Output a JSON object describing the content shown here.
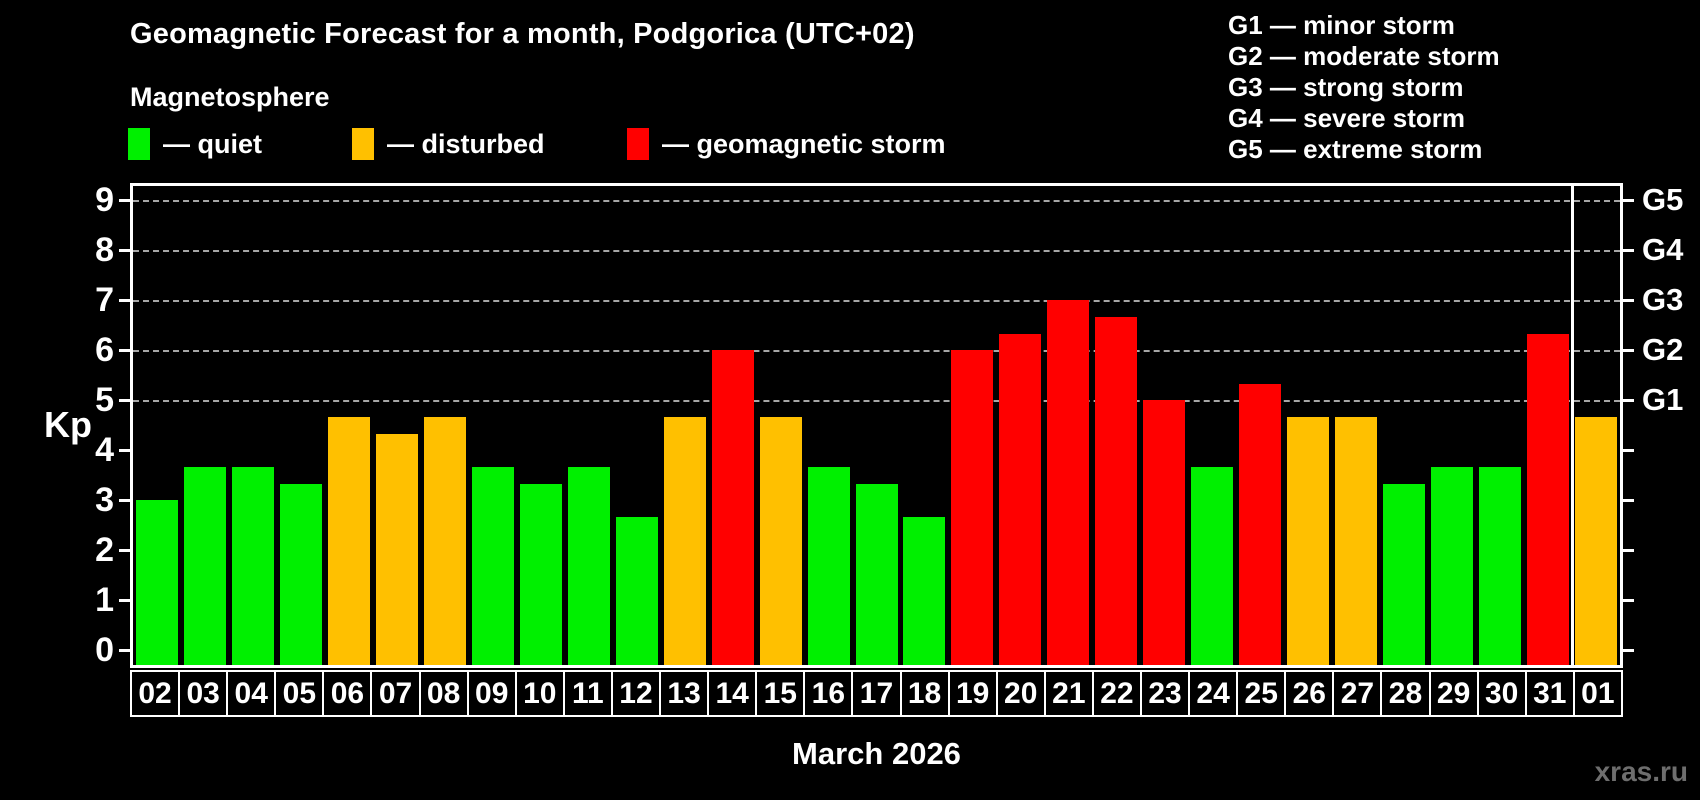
{
  "title": "Geomagnetic Forecast for a month, Podgorica (UTC+02)",
  "subtitle": "Magnetosphere",
  "xlabel": "March 2026",
  "watermark": "xras.ru",
  "colors": {
    "quiet": "#00f000",
    "disturbed": "#ffc000",
    "storm": "#ff0000",
    "grid": "#a6a6a6",
    "axis": "#ffffff",
    "background": "#000000",
    "watermark_text": "#6e6e6e"
  },
  "legend": {
    "items": [
      {
        "status": "quiet",
        "label": "— quiet",
        "x": 128
      },
      {
        "status": "disturbed",
        "label": "— disturbed",
        "x": 352
      },
      {
        "status": "storm",
        "label": "— geomagnetic storm",
        "x": 627
      }
    ]
  },
  "storm_scale": {
    "lines": [
      "G1 — minor storm",
      "G2 — moderate storm",
      "G3 — strong storm",
      "G4 — severe storm",
      "G5 — extreme storm"
    ]
  },
  "axis": {
    "kp_label": "Kp",
    "left_ticks": [
      0,
      1,
      2,
      3,
      4,
      5,
      6,
      7,
      8,
      9
    ],
    "right_labels": [
      {
        "kp": 5,
        "label": "G1"
      },
      {
        "kp": 6,
        "label": "G2"
      },
      {
        "kp": 7,
        "label": "G3"
      },
      {
        "kp": 8,
        "label": "G4"
      },
      {
        "kp": 9,
        "label": "G5"
      }
    ]
  },
  "chart_data": {
    "type": "bar",
    "title": "Geomagnetic Forecast for a month, Podgorica (UTC+02)",
    "xlabel": "March 2026",
    "ylabel": "Kp",
    "ylim": [
      0,
      9
    ],
    "grid_levels": [
      5,
      6,
      7,
      8,
      9
    ],
    "legend_position": "top-left",
    "month_boundary_after_index": 29,
    "categories": [
      "02",
      "03",
      "04",
      "05",
      "06",
      "07",
      "08",
      "09",
      "10",
      "11",
      "12",
      "13",
      "14",
      "15",
      "16",
      "17",
      "18",
      "19",
      "20",
      "21",
      "22",
      "23",
      "24",
      "25",
      "26",
      "27",
      "28",
      "29",
      "30",
      "31",
      "01"
    ],
    "values": [
      3.0,
      3.67,
      3.67,
      3.33,
      4.67,
      4.33,
      4.67,
      3.67,
      3.33,
      3.67,
      2.67,
      4.67,
      6.0,
      4.67,
      3.67,
      3.33,
      2.67,
      6.0,
      6.33,
      7.0,
      6.67,
      5.0,
      3.67,
      5.33,
      4.67,
      4.67,
      3.33,
      3.67,
      3.67,
      6.33,
      4.67
    ],
    "statuses": [
      "quiet",
      "quiet",
      "quiet",
      "quiet",
      "disturbed",
      "disturbed",
      "disturbed",
      "quiet",
      "quiet",
      "quiet",
      "quiet",
      "disturbed",
      "storm",
      "disturbed",
      "quiet",
      "quiet",
      "quiet",
      "storm",
      "storm",
      "storm",
      "storm",
      "storm",
      "quiet",
      "storm",
      "disturbed",
      "disturbed",
      "quiet",
      "quiet",
      "quiet",
      "storm",
      "disturbed"
    ]
  }
}
